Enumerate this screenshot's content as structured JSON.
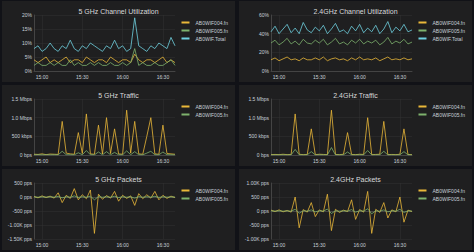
{
  "chart_data": [
    {
      "type": "line",
      "title": "5 GHz Channel Utilization",
      "grid": true,
      "legend": "right",
      "x": [
        null,
        null,
        "15:00",
        null,
        null,
        null,
        null,
        null,
        null,
        null,
        null,
        null,
        "15:30",
        null,
        null,
        null,
        null,
        null,
        null,
        null,
        null,
        null,
        "16:00",
        null,
        null,
        null,
        null,
        null,
        null,
        null,
        null,
        null,
        "16:30",
        null,
        null,
        null
      ],
      "ylim": [
        0,
        20
      ],
      "yticks": [
        {
          "value": 0,
          "label": "0%"
        },
        {
          "value": 5,
          "label": "5%"
        },
        {
          "value": 10,
          "label": "10%"
        },
        {
          "value": 15,
          "label": "15%"
        },
        {
          "value": 20,
          "label": "20%"
        }
      ],
      "series": [
        {
          "name": "AB0WIF004.fn",
          "color": "#eab839",
          "values": [
            4,
            3,
            4,
            5,
            3,
            4,
            3,
            4,
            5,
            3,
            4,
            4,
            3,
            5,
            4,
            3,
            4,
            4,
            3,
            5,
            4,
            3,
            4,
            4,
            3,
            6,
            4,
            3,
            4,
            4,
            3,
            4,
            5,
            3,
            4,
            3
          ]
        },
        {
          "name": "AB0WIF005.fn",
          "color": "#7eb26d",
          "values": [
            2,
            3,
            2,
            2,
            3,
            2,
            3,
            2,
            2,
            4,
            2,
            3,
            2,
            2,
            3,
            2,
            3,
            2,
            2,
            3,
            2,
            2,
            3,
            2,
            3,
            8,
            2,
            3,
            2,
            2,
            3,
            2,
            2,
            3,
            4,
            2
          ]
        },
        {
          "name": "AB0WIF.Total",
          "color": "#6ed0e0",
          "values": [
            8,
            9,
            7,
            8,
            10,
            8,
            7,
            9,
            8,
            11,
            8,
            7,
            9,
            8,
            10,
            9,
            8,
            7,
            9,
            8,
            11,
            8,
            9,
            7,
            8,
            19,
            9,
            8,
            7,
            9,
            8,
            10,
            9,
            8,
            12,
            9
          ]
        }
      ]
    },
    {
      "type": "line",
      "title": "2.4GHz Channel Utilization",
      "grid": true,
      "legend": "right",
      "x": [
        null,
        null,
        "15:00",
        null,
        null,
        null,
        null,
        null,
        null,
        null,
        null,
        null,
        "15:30",
        null,
        null,
        null,
        null,
        null,
        null,
        null,
        null,
        null,
        "16:00",
        null,
        null,
        null,
        null,
        null,
        null,
        null,
        null,
        null,
        "16:30",
        null,
        null,
        null
      ],
      "ylim": [
        0,
        60
      ],
      "yticks": [
        {
          "value": 0,
          "label": "0%"
        },
        {
          "value": 20,
          "label": "20%"
        },
        {
          "value": 40,
          "label": "40%"
        },
        {
          "value": 60,
          "label": "60%"
        }
      ],
      "series": [
        {
          "name": "AB0WIF004.fn",
          "color": "#eab839",
          "values": [
            12,
            14,
            11,
            13,
            15,
            12,
            13,
            11,
            14,
            12,
            12,
            14,
            12,
            15,
            11,
            13,
            14,
            12,
            13,
            11,
            14,
            12,
            15,
            12,
            13,
            12,
            14,
            11,
            13,
            15,
            12,
            13,
            12,
            14,
            12,
            13
          ]
        },
        {
          "name": "AB0WIF005.fn",
          "color": "#7eb26d",
          "values": [
            30,
            33,
            28,
            31,
            35,
            29,
            32,
            28,
            34,
            30,
            29,
            33,
            30,
            34,
            28,
            31,
            35,
            29,
            31,
            28,
            33,
            30,
            34,
            29,
            32,
            30,
            33,
            28,
            31,
            36,
            29,
            32,
            30,
            34,
            29,
            31
          ]
        },
        {
          "name": "AB0WIF.Total",
          "color": "#6ed0e0",
          "values": [
            42,
            48,
            40,
            45,
            50,
            41,
            46,
            40,
            52,
            44,
            41,
            47,
            43,
            49,
            40,
            45,
            51,
            42,
            44,
            40,
            48,
            43,
            50,
            41,
            46,
            42,
            49,
            40,
            45,
            53,
            41,
            47,
            43,
            50,
            42,
            44
          ]
        }
      ]
    },
    {
      "type": "line",
      "title": "5 GHz Traffic",
      "grid": true,
      "legend": "right",
      "x": [
        null,
        null,
        "15:00",
        null,
        null,
        null,
        null,
        null,
        null,
        null,
        null,
        null,
        "15:30",
        null,
        null,
        null,
        null,
        null,
        null,
        null,
        null,
        null,
        "16:00",
        null,
        null,
        null,
        null,
        null,
        null,
        null,
        null,
        null,
        "16:30",
        null,
        null,
        null
      ],
      "ylim": [
        0,
        1500000
      ],
      "yticks": [
        {
          "value": 0,
          "label": "0 bps"
        },
        {
          "value": 500000,
          "label": "500 kbps"
        },
        {
          "value": 1000000,
          "label": "1.0 Mbps"
        },
        {
          "value": 1500000,
          "label": "1.5 Mbps"
        }
      ],
      "series": [
        {
          "name": "AB0WIF004.fn",
          "color": "#eab839",
          "values": [
            20000,
            15000,
            30000,
            10000,
            25000,
            20000,
            15000,
            900000,
            50000,
            30000,
            20000,
            600000,
            40000,
            1100000,
            30000,
            20000,
            800000,
            25000,
            1000000,
            40000,
            700000,
            30000,
            20000,
            1200000,
            50000,
            900000,
            30000,
            20000,
            500000,
            1000000,
            30000,
            20000,
            800000,
            40000,
            30000,
            20000
          ]
        },
        {
          "name": "AB0WIF005.fn",
          "color": "#7eb26d",
          "values": [
            5000,
            8000,
            5000,
            6000,
            5000,
            7000,
            5000,
            100000,
            8000,
            6000,
            5000,
            60000,
            7000,
            120000,
            6000,
            5000,
            80000,
            6000,
            90000,
            7000,
            70000,
            6000,
            5000,
            110000,
            8000,
            90000,
            6000,
            5000,
            50000,
            100000,
            6000,
            5000,
            80000,
            7000,
            6000,
            5000
          ]
        }
      ]
    },
    {
      "type": "line",
      "title": "2.4GHz Traffic",
      "grid": true,
      "legend": "right",
      "x": [
        null,
        null,
        "15:00",
        null,
        null,
        null,
        null,
        null,
        null,
        null,
        null,
        null,
        "15:30",
        null,
        null,
        null,
        null,
        null,
        null,
        null,
        null,
        null,
        "16:00",
        null,
        null,
        null,
        null,
        null,
        null,
        null,
        null,
        null,
        "16:30",
        null,
        null,
        null
      ],
      "ylim": [
        0,
        1500000
      ],
      "yticks": [
        {
          "value": 0,
          "label": "0 bps"
        },
        {
          "value": 500000,
          "label": "500 kbps"
        },
        {
          "value": 1000000,
          "label": "1.0 Mbps"
        },
        {
          "value": 1500000,
          "label": "1.5 Mbps"
        }
      ],
      "series": [
        {
          "name": "AB0WIF004.fn",
          "color": "#eab839",
          "values": [
            10000,
            15000,
            10000,
            20000,
            10000,
            15000,
            1100000,
            20000,
            10000,
            15000,
            700000,
            10000,
            20000,
            15000,
            10000,
            1200000,
            15000,
            10000,
            20000,
            600000,
            15000,
            10000,
            20000,
            15000,
            1000000,
            10000,
            15000,
            20000,
            900000,
            10000,
            15000,
            10000,
            20000,
            700000,
            15000,
            10000
          ]
        },
        {
          "name": "AB0WIF005.fn",
          "color": "#7eb26d",
          "values": [
            3000,
            5000,
            3000,
            6000,
            3000,
            5000,
            150000,
            6000,
            3000,
            5000,
            90000,
            3000,
            6000,
            5000,
            3000,
            200000,
            5000,
            3000,
            6000,
            80000,
            5000,
            3000,
            6000,
            5000,
            120000,
            3000,
            5000,
            6000,
            100000,
            3000,
            5000,
            3000,
            6000,
            90000,
            5000,
            3000
          ]
        }
      ]
    },
    {
      "type": "line",
      "title": "5 GHz Packets",
      "grid": true,
      "legend": "right",
      "x": [
        null,
        null,
        "15:00",
        null,
        null,
        null,
        null,
        null,
        null,
        null,
        null,
        null,
        "15:30",
        null,
        null,
        null,
        null,
        null,
        null,
        null,
        null,
        null,
        "16:00",
        null,
        null,
        null,
        null,
        null,
        null,
        null,
        null,
        null,
        "16:30",
        null,
        null,
        null
      ],
      "ylim": [
        -1500,
        500
      ],
      "yticks": [
        {
          "value": -1500,
          "label": "-1.50K pps"
        },
        {
          "value": -1000,
          "label": "-1.00K pps"
        },
        {
          "value": -500,
          "label": "-500 pps"
        },
        {
          "value": 0,
          "label": "0 pps"
        },
        {
          "value": 500,
          "label": "500 pps"
        }
      ],
      "series": [
        {
          "name": "AB0WIF004.fn",
          "color": "#eab839",
          "values": [
            20,
            -30,
            40,
            -20,
            30,
            -40,
            150,
            -200,
            60,
            -50,
            300,
            -100,
            80,
            -60,
            250,
            -1300,
            100,
            -80,
            50,
            -40,
            200,
            -150,
            60,
            -50,
            40,
            -300,
            120,
            -60,
            80,
            -40,
            200,
            -100,
            60,
            -50,
            30,
            -20
          ]
        },
        {
          "name": "AB0WIF005.fn",
          "color": "#7eb26d",
          "values": [
            5,
            -8,
            6,
            -5,
            7,
            -6,
            20,
            -30,
            10,
            -8,
            40,
            -15,
            10,
            -8,
            30,
            -100,
            15,
            -10,
            8,
            -6,
            25,
            -20,
            10,
            -8,
            6,
            -40,
            15,
            -8,
            10,
            -6,
            25,
            -15,
            8,
            -6,
            5,
            -4
          ]
        }
      ]
    },
    {
      "type": "line",
      "title": "2.4GHz Packets",
      "grid": true,
      "legend": "right",
      "x": [
        null,
        null,
        "15:00",
        null,
        null,
        null,
        null,
        null,
        null,
        null,
        null,
        null,
        "15:30",
        null,
        null,
        null,
        null,
        null,
        null,
        null,
        null,
        null,
        "16:00",
        null,
        null,
        null,
        null,
        null,
        null,
        null,
        null,
        null,
        "16:30",
        null,
        null,
        null
      ],
      "ylim": [
        -1000,
        1000
      ],
      "yticks": [
        {
          "value": -1000,
          "label": "-1.00K pps"
        },
        {
          "value": -500,
          "label": "-500 pps"
        },
        {
          "value": 0,
          "label": "0 pps"
        },
        {
          "value": 500,
          "label": "500 pps"
        },
        {
          "value": 1000,
          "label": "1.00K pps"
        }
      ],
      "series": [
        {
          "name": "AB0WIF004.fn",
          "color": "#eab839",
          "values": [
            30,
            -20,
            40,
            -30,
            20,
            -40,
            500,
            -600,
            50,
            -40,
            300,
            -200,
            40,
            -30,
            600,
            -700,
            60,
            -50,
            30,
            -20,
            400,
            -300,
            50,
            -40,
            700,
            -800,
            60,
            -50,
            300,
            -250,
            40,
            -30,
            500,
            -400,
            30,
            -20
          ]
        },
        {
          "name": "AB0WIF005.fn",
          "color": "#7eb26d",
          "values": [
            5,
            -4,
            6,
            -5,
            4,
            -6,
            60,
            -80,
            8,
            -6,
            40,
            -30,
            6,
            -5,
            70,
            -90,
            8,
            -7,
            5,
            -4,
            50,
            -40,
            8,
            -6,
            80,
            -100,
            8,
            -7,
            40,
            -30,
            6,
            -5,
            60,
            -50,
            5,
            -4
          ]
        }
      ]
    }
  ]
}
